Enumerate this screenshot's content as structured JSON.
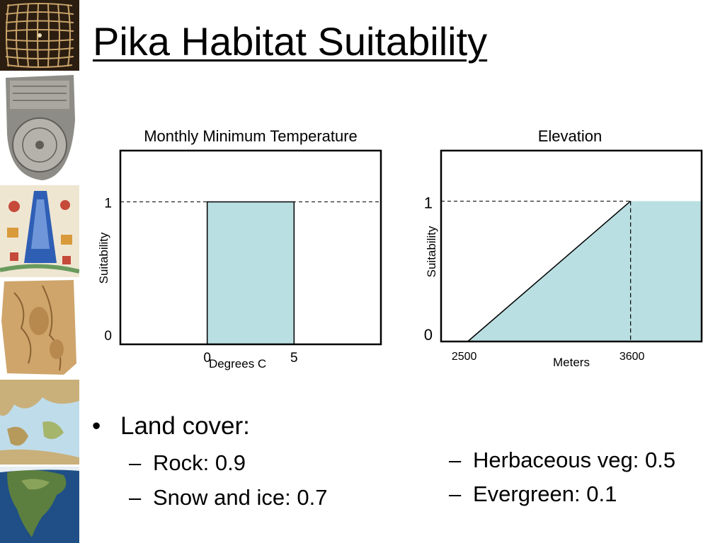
{
  "slide": {
    "title": "Pika Habitat Suitability"
  },
  "sidebar": {
    "images": [
      {
        "name": "woven-grid-map-thumbnail"
      },
      {
        "name": "clay-tablet-map-thumbnail"
      },
      {
        "name": "illuminated-mountain-map-thumbnail"
      },
      {
        "name": "parchment-map-thumbnail"
      },
      {
        "name": "mediterranean-relief-map-thumbnail"
      },
      {
        "name": "north-america-satellite-thumbnail"
      }
    ]
  },
  "chart_data": [
    {
      "type": "area",
      "title": "Monthly Minimum Temperature",
      "xlabel": "Degrees C",
      "ylabel": "Suitability",
      "x_ticks": [
        "0",
        "5"
      ],
      "y_ticks": [
        "0",
        "1"
      ],
      "x": [
        0,
        5
      ],
      "values": [
        1,
        1
      ],
      "reference_line_y": 1,
      "fill_color": "#b9dfe2"
    },
    {
      "type": "area",
      "title": "Elevation",
      "xlabel": "Meters",
      "ylabel": "Suitability",
      "x_ticks": [
        "2500",
        "3600"
      ],
      "y_ticks": [
        "0",
        "1"
      ],
      "x": [
        2500,
        3600
      ],
      "values": [
        0,
        1
      ],
      "reference_line_y": 1,
      "reference_line_x": 3600,
      "fill_color": "#b9dfe2"
    }
  ],
  "land_cover": {
    "heading": "Land cover:",
    "bullet_symbol": "•",
    "dash_symbol": "–",
    "items": [
      "Rock: 0.9",
      "Snow and ice: 0.7",
      "Herbaceous veg: 0.5",
      "Evergreen: 0.1"
    ]
  }
}
